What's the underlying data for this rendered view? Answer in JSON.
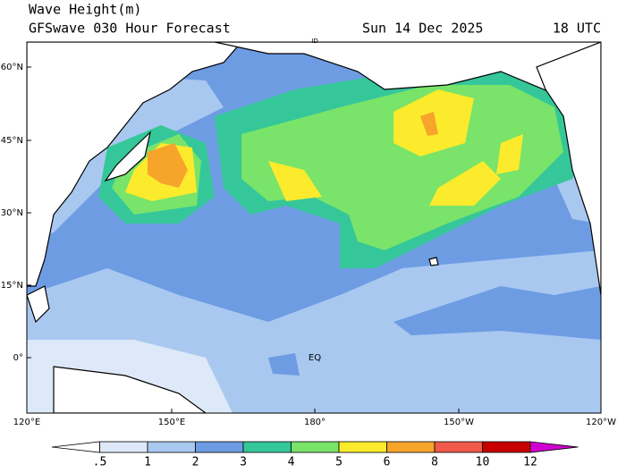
{
  "header": {
    "title": "Wave Height(m)",
    "model": "GFSwave 030 Hour Forecast",
    "date": "Sun 14 Dec 2025",
    "time": "18 UTC"
  },
  "lat_labels": [
    "60°N",
    "45°N",
    "30°N",
    "15°N",
    "0°"
  ],
  "lon_labels": [
    "120°E",
    "150°E",
    "180°",
    "150°W",
    "120°W"
  ],
  "map_labels": {
    "equator": "EQ",
    "dateline": "ID"
  },
  "colorbar": {
    "labels": [
      ".5",
      "1",
      "2",
      "3",
      "4",
      "5",
      "6",
      "8",
      "10",
      "12"
    ],
    "colors": [
      "#ffffff",
      "#dde9f8",
      "#a9c8f0",
      "#6d9ce3",
      "#35c799",
      "#79e36a",
      "#fbeb2c",
      "#f7a42a",
      "#f05a4a",
      "#c80000",
      "#d000d0"
    ]
  }
}
